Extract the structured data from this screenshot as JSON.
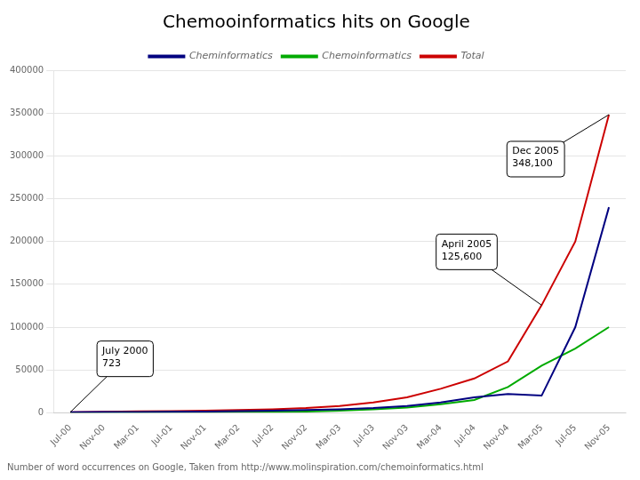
{
  "chart_data": {
    "type": "line",
    "title": "Chemooinformatics hits on Google",
    "footnote": "Number of word occurrences on Google, Taken from http://www.molinspiration.com/chemoinformatics.html",
    "categories": [
      "Jul-00",
      "Nov-00",
      "Mar-01",
      "Jul-01",
      "Nov-01",
      "Mar-02",
      "Jul-02",
      "Nov-02",
      "Mar-03",
      "Jul-03",
      "Nov-03",
      "Mar-04",
      "Jul-04",
      "Nov-04",
      "Mar-05",
      "Jul-05",
      "Nov-05"
    ],
    "series": [
      {
        "name": "Cheminformatics",
        "color": "#000080",
        "values": [
          500,
          800,
          1000,
          1200,
          1500,
          2000,
          2500,
          3200,
          4000,
          5500,
          8000,
          12000,
          18000,
          22000,
          20000,
          100000,
          240000
        ]
      },
      {
        "name": "Chemoinformatics",
        "color": "#00aa00",
        "values": [
          200,
          300,
          400,
          500,
          600,
          800,
          1000,
          1500,
          2500,
          4000,
          6000,
          10000,
          15000,
          30000,
          55000,
          75000,
          100000
        ]
      },
      {
        "name": "Total",
        "color": "#cc0000",
        "values": [
          723,
          1200,
          1600,
          2000,
          2500,
          3200,
          4000,
          5500,
          8000,
          12000,
          18000,
          28000,
          40000,
          60000,
          125600,
          200000,
          348100
        ]
      }
    ],
    "ylim": [
      0,
      400000
    ],
    "yticks": [
      0,
      50000,
      100000,
      150000,
      200000,
      250000,
      300000,
      350000,
      400000
    ],
    "grid": "y",
    "legend": "top",
    "annotations": [
      {
        "text": "July 2000\n723",
        "x": "Jul-00",
        "y": 723
      },
      {
        "text": "April 2005\n125,600",
        "x": "Mar-05",
        "y": 125600
      },
      {
        "text": "Dec 2005\n348,100",
        "x": "Nov-05",
        "y": 348100
      }
    ]
  }
}
